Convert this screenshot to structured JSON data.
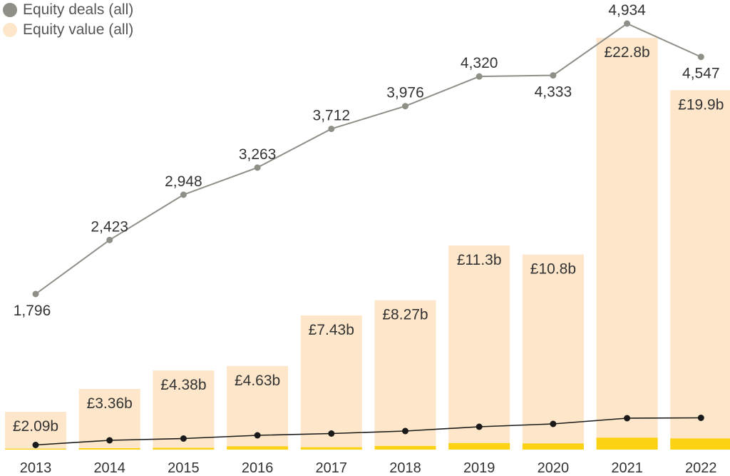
{
  "chart_data": {
    "type": "bar",
    "categories": [
      "2013",
      "2014",
      "2015",
      "2016",
      "2017",
      "2018",
      "2019",
      "2020",
      "2021",
      "2022"
    ],
    "legend": [
      {
        "label": "Equity deals (all)",
        "color": "#8f8f88",
        "shape": "circle"
      },
      {
        "label": "Equity value (all)",
        "color": "#fde6c9",
        "shape": "circle"
      }
    ],
    "series": [
      {
        "name": "Equity value (all)",
        "type": "bar",
        "color": "#fde6c9",
        "values": [
          2.09,
          3.36,
          4.38,
          4.63,
          7.43,
          8.27,
          11.3,
          10.8,
          22.8,
          19.9
        ],
        "labels": [
          "£2.09b",
          "£3.36b",
          "£4.38b",
          "£4.63b",
          "£7.43b",
          "£8.27b",
          "£11.3b",
          "£10.8b",
          "£22.8b",
          "£19.9b"
        ]
      },
      {
        "name": "Equity deals (all)",
        "type": "line",
        "color": "#8f8f88",
        "values": [
          1796,
          2423,
          2948,
          3263,
          3712,
          3976,
          4320,
          4333,
          4934,
          4547
        ],
        "labels": [
          "1,796",
          "2,423",
          "2,948",
          "3,263",
          "3,712",
          "3,976",
          "4,320",
          "4,333",
          "4,934",
          "4,547"
        ]
      },
      {
        "type": "bar",
        "color": "#fcd314",
        "values": [
          0.05,
          0.08,
          0.1,
          0.18,
          0.13,
          0.2,
          0.36,
          0.34,
          0.66,
          0.62
        ]
      },
      {
        "type": "line",
        "color": "#1a1a1a",
        "values": [
          30,
          160,
          210,
          300,
          350,
          420,
          540,
          620,
          780,
          790
        ]
      }
    ],
    "value_axis": {
      "min": 0,
      "max": 22.8,
      "unit": "£b"
    },
    "deals_axis": {
      "min": 0,
      "max": 4934
    },
    "grid": false,
    "legend_position": "top-left"
  }
}
